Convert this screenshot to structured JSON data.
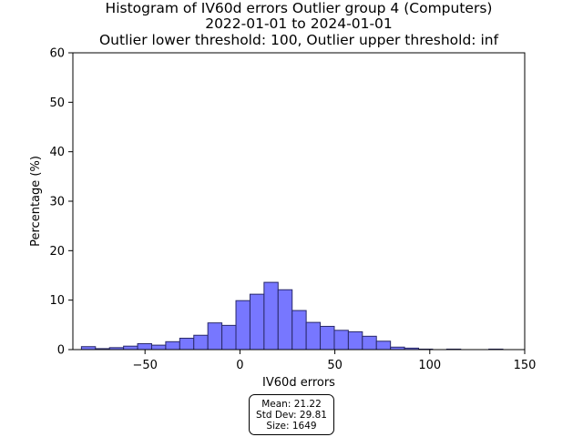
{
  "chart_data": {
    "type": "bar",
    "title_lines": [
      "Histogram of IV60d errors Outlier group 4 (Computers)",
      "2022-01-01 to 2024-01-01",
      "Outlier lower threshold: 100, Outlier upper threshold: inf"
    ],
    "xlabel": "IV60d errors",
    "ylabel": "Percentage (%)",
    "xlim": [
      -88,
      150
    ],
    "ylim": [
      0,
      60
    ],
    "xticks": [
      -50,
      0,
      50,
      100,
      150
    ],
    "xtick_labels": [
      "−50",
      "0",
      "50",
      "100",
      "150"
    ],
    "yticks": [
      0,
      10,
      20,
      30,
      40,
      50,
      60
    ],
    "grid": false,
    "bar_color": "#7777ff",
    "edge_color": "#2a2a6a",
    "bin_width": 7.4,
    "bins": [
      {
        "x0": -83.5,
        "value": 0.6
      },
      {
        "x0": -76.1,
        "value": 0.2
      },
      {
        "x0": -68.7,
        "value": 0.4
      },
      {
        "x0": -61.3,
        "value": 0.7
      },
      {
        "x0": -53.9,
        "value": 1.2
      },
      {
        "x0": -46.5,
        "value": 0.9
      },
      {
        "x0": -39.1,
        "value": 1.6
      },
      {
        "x0": -31.7,
        "value": 2.3
      },
      {
        "x0": -24.3,
        "value": 2.9
      },
      {
        "x0": -16.9,
        "value": 5.4
      },
      {
        "x0": -9.5,
        "value": 4.9
      },
      {
        "x0": -2.1,
        "value": 9.9
      },
      {
        "x0": 5.3,
        "value": 11.2
      },
      {
        "x0": 12.7,
        "value": 13.6
      },
      {
        "x0": 20.1,
        "value": 12.1
      },
      {
        "x0": 27.5,
        "value": 7.9
      },
      {
        "x0": 34.9,
        "value": 5.5
      },
      {
        "x0": 42.3,
        "value": 4.7
      },
      {
        "x0": 49.7,
        "value": 3.9
      },
      {
        "x0": 57.1,
        "value": 3.6
      },
      {
        "x0": 64.5,
        "value": 2.7
      },
      {
        "x0": 71.9,
        "value": 1.7
      },
      {
        "x0": 79.3,
        "value": 0.5
      },
      {
        "x0": 86.7,
        "value": 0.3
      },
      {
        "x0": 94.1,
        "value": 0.1
      },
      {
        "x0": 101.5,
        "value": 0.0
      },
      {
        "x0": 108.9,
        "value": 0.1
      },
      {
        "x0": 116.3,
        "value": 0.0
      },
      {
        "x0": 123.7,
        "value": 0.0
      },
      {
        "x0": 131.1,
        "value": 0.1
      }
    ],
    "stats_box": {
      "mean": "Mean: 21.22",
      "std": "Std Dev: 29.81",
      "size": "Size: 1649"
    }
  }
}
